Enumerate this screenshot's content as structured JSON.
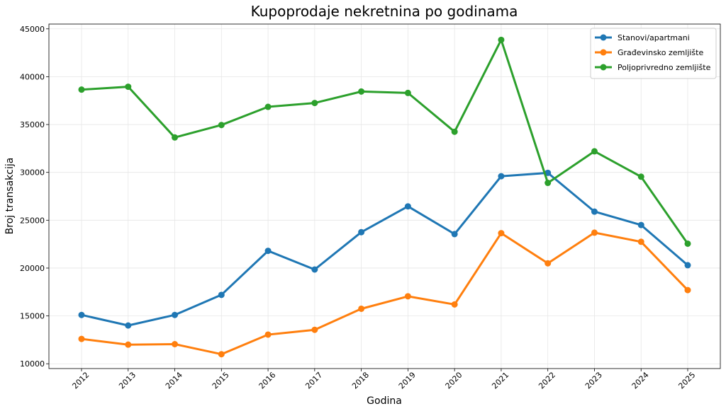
{
  "chart_data": {
    "type": "line",
    "title": "Kupoprodaje nekretnina po godinama",
    "xlabel": "Godina",
    "ylabel": "Broj transakcija",
    "x": [
      "2012",
      "2013",
      "2014",
      "2015",
      "2016",
      "2017",
      "2018",
      "2019",
      "2020",
      "2021",
      "2022",
      "2023",
      "2024",
      "2025"
    ],
    "ylim": [
      9500,
      45500
    ],
    "yticks": [
      10000,
      15000,
      20000,
      25000,
      30000,
      35000,
      40000,
      45000
    ],
    "grid": true,
    "legend_position": "top-right",
    "series": [
      {
        "name": "Stanovi/apartmani",
        "color": "#1f77b4",
        "values": [
          15100,
          14000,
          15100,
          17200,
          21800,
          19850,
          23750,
          26450,
          23550,
          29600,
          29950,
          25900,
          24500,
          20300
        ]
      },
      {
        "name": "Građevinsko zemljište",
        "color": "#ff7f0e",
        "values": [
          12600,
          12000,
          12050,
          11000,
          13050,
          13550,
          15750,
          17050,
          16200,
          23650,
          20500,
          23700,
          22750,
          17700
        ]
      },
      {
        "name": "Poljoprivredno zemljište",
        "color": "#2ca02c",
        "values": [
          38650,
          38950,
          33650,
          34950,
          36850,
          37250,
          38450,
          38300,
          34250,
          43850,
          28900,
          32200,
          29550,
          22550
        ]
      }
    ]
  }
}
